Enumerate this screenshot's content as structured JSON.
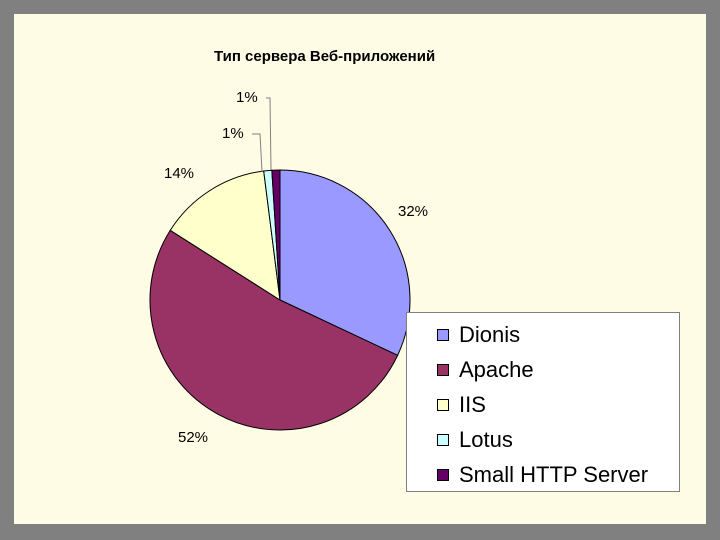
{
  "chart_data": {
    "type": "pie",
    "title": "Тип сервера Веб-приложений",
    "categories": [
      "Dionis",
      "Apache",
      "IIS",
      "Lotus",
      "Small HTTP Server"
    ],
    "values": [
      32,
      52,
      14,
      1,
      1
    ],
    "value_labels": [
      "32%",
      "52%",
      "14%",
      "1%",
      "1%"
    ],
    "colors": [
      "#9999FF",
      "#993366",
      "#FFFFCC",
      "#CCFFFF",
      "#660066"
    ],
    "legend_position": "right",
    "start_angle_deg": 0,
    "direction": "clockwise"
  }
}
